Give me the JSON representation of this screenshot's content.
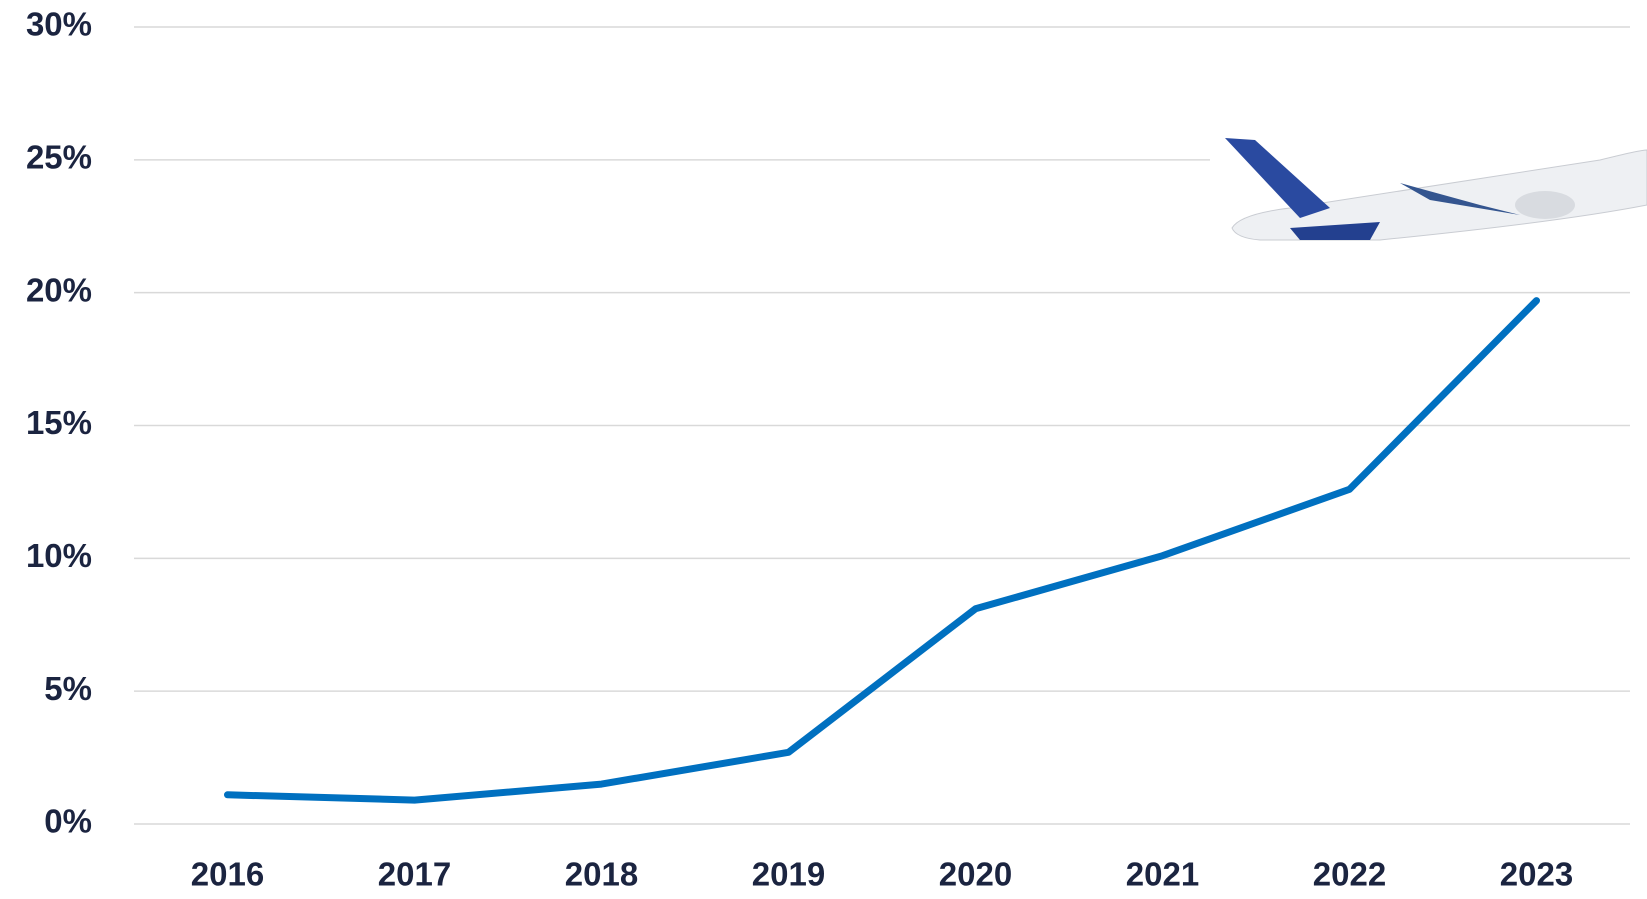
{
  "chart_data": {
    "type": "line",
    "categories": [
      "2016",
      "2017",
      "2018",
      "2019",
      "2020",
      "2021",
      "2022",
      "2023"
    ],
    "series": [
      {
        "color": "#0070c0",
        "values": [
          1.1,
          0.9,
          1.5,
          2.7,
          8.1,
          10.1,
          12.6,
          19.7
        ]
      }
    ],
    "ylim": [
      0,
      30
    ],
    "yticks": [
      {
        "value": 0,
        "label": "0%"
      },
      {
        "value": 5,
        "label": "5%"
      },
      {
        "value": 10,
        "label": "10%"
      },
      {
        "value": 15,
        "label": "15%"
      },
      {
        "value": 20,
        "label": "20%"
      },
      {
        "value": 25,
        "label": "25%"
      },
      {
        "value": 30,
        "label": "30%"
      }
    ],
    "grid": true
  }
}
